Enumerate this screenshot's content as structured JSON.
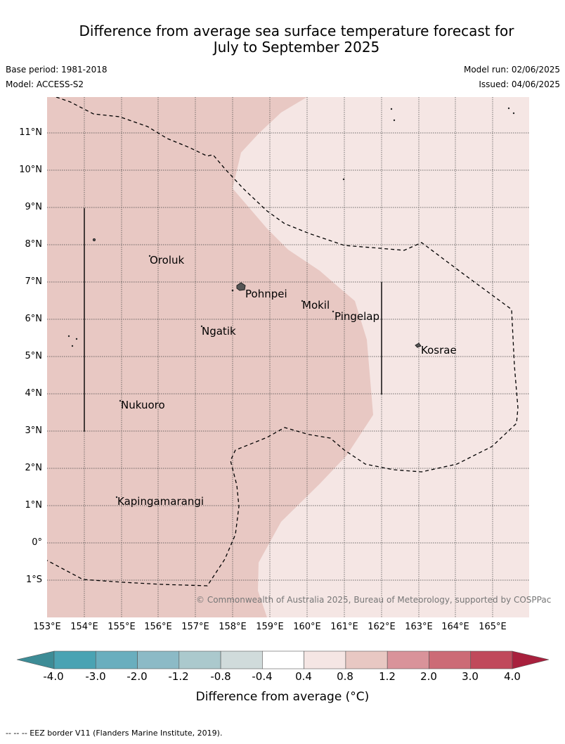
{
  "title_line1": "Difference from average sea surface temperature forecast for",
  "title_line2": "July to September 2025",
  "base_period": "Base period: 1981-2018",
  "model": "Model: ACCESS-S2",
  "model_run": "Model run: 02/06/2025",
  "issued": "Issued: 04/06/2025",
  "lat_labels": [
    "11°N",
    "10°N",
    "9°N",
    "8°N",
    "7°N",
    "6°N",
    "5°N",
    "4°N",
    "3°N",
    "2°N",
    "1°N",
    "0°",
    "1°S"
  ],
  "lon_labels": [
    "153°E",
    "154°E",
    "155°E",
    "156°E",
    "157°E",
    "158°E",
    "159°E",
    "160°E",
    "161°E",
    "162°E",
    "163°E",
    "164°E",
    "165°E"
  ],
  "places": {
    "oroluk": "Oroluk",
    "pohnpei": "Pohnpei",
    "mokil": "Mokil",
    "pingelap": "Pingelap",
    "ngatik": "Ngatik",
    "kosrae": "Kosrae",
    "nukuoro": "Nukuoro",
    "kapingamarangi": "Kapingamarangi"
  },
  "copyright": "© Commonwealth of Australia 2025, Bureau of Meteorology, supported by COSPPac",
  "colorbar": {
    "ticks": [
      "-4.0",
      "-3.0",
      "-2.0",
      "-1.2",
      "-0.8",
      "-0.4",
      "0.4",
      "0.8",
      "1.2",
      "2.0",
      "3.0",
      "4.0"
    ],
    "colors": [
      "#3d8c96",
      "#4aa3b3",
      "#6aaebe",
      "#8cbac6",
      "#abc9cd",
      "#d0dbdb",
      "#ffffff",
      "#f5e6e4",
      "#e8c8c3",
      "#d9939a",
      "#cc6b76",
      "#c0495b",
      "#a8203d"
    ],
    "label": "Difference from average (°C)"
  },
  "footnote": "-- --  -- EEZ border V11 (Flanders Marine Institute, 2019)."
}
